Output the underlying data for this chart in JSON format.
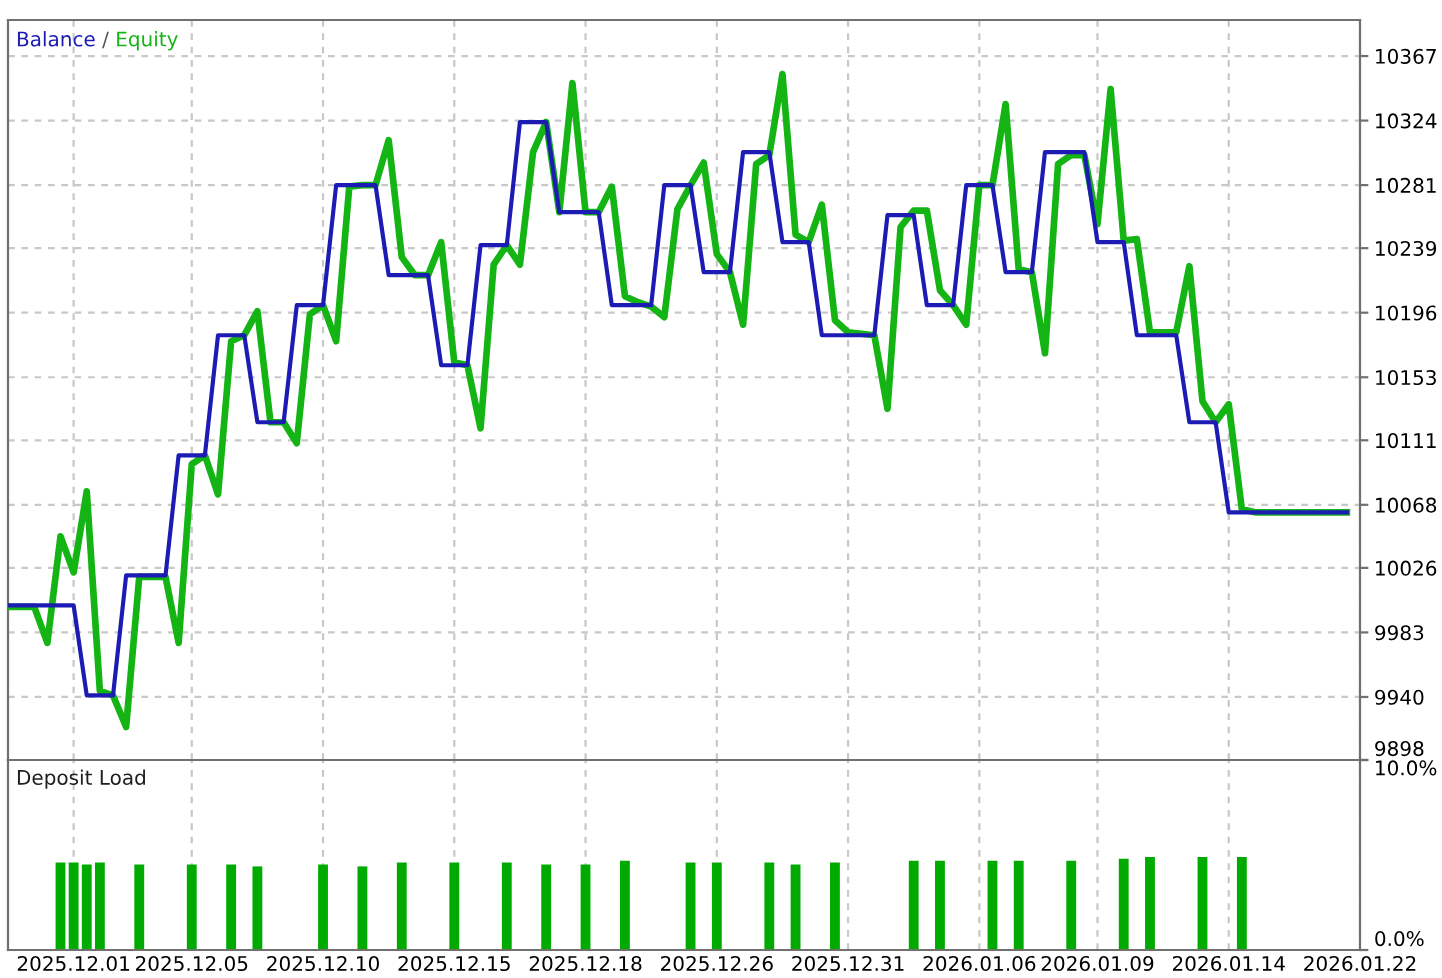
{
  "chart_data": [
    {
      "type": "line",
      "annotations": [
        "/"
      ],
      "grid": true,
      "tick_labels": "y",
      "marker": "none",
      "line_style": "solid",
      "categories": [
        null,
        null,
        null,
        null,
        null,
        "2025.12.01",
        null,
        null,
        null,
        null,
        null,
        null,
        null,
        null,
        "2025.12.05",
        null,
        null,
        null,
        null,
        null,
        null,
        null,
        null,
        null,
        "2025.12.10",
        null,
        null,
        null,
        null,
        null,
        null,
        null,
        null,
        null,
        "2025.12.15",
        null,
        null,
        null,
        null,
        null,
        null,
        null,
        null,
        null,
        "2025.12.18",
        null,
        null,
        null,
        null,
        null,
        null,
        null,
        null,
        null,
        "2025.12.26",
        null,
        null,
        null,
        null,
        null,
        null,
        null,
        null,
        null,
        "2025.12.31",
        null,
        null,
        null,
        null,
        null,
        null,
        null,
        null,
        null,
        "2026.01.06",
        null,
        null,
        null,
        null,
        null,
        null,
        null,
        null,
        "2026.01.09",
        null,
        null,
        null,
        null,
        null,
        null,
        null,
        null,
        null,
        "2026.01.14",
        null,
        null,
        null,
        null,
        null,
        null,
        null,
        null,
        null,
        "2026.01.22"
      ],
      "ylim": [
        9898,
        10391
      ],
      "yticks": [
        9898,
        9940,
        9983,
        10026,
        10068,
        10111,
        10153,
        10196,
        10239,
        10281,
        10324,
        10367
      ],
      "series": [
        {
          "name": "Balance",
          "color": "#1c1cb4",
          "values": [
            10001,
            10001,
            10001,
            10001,
            10001,
            10001,
            9941,
            9941,
            9941,
            10021,
            10021,
            10021,
            10021,
            10101,
            10101,
            10101,
            10181,
            10181,
            10181,
            10123,
            10123,
            10123,
            10201,
            10201,
            10201,
            10281,
            10281,
            10281,
            10281,
            10221,
            10221,
            10221,
            10221,
            10161,
            10161,
            10161,
            10241,
            10241,
            10241,
            10323,
            10323,
            10323,
            10263,
            10263,
            10263,
            10263,
            10201,
            10201,
            10201,
            10201,
            10281,
            10281,
            10281,
            10223,
            10223,
            10223,
            10303,
            10303,
            10303,
            10243,
            10243,
            10243,
            10181,
            10181,
            10181,
            10181,
            10181,
            10261,
            10261,
            10261,
            10201,
            10201,
            10201,
            10281,
            10281,
            10281,
            10223,
            10223,
            10223,
            10303,
            10303,
            10303,
            10303,
            10243,
            10243,
            10243,
            10181,
            10181,
            10181,
            10181,
            10123,
            10123,
            10123,
            10063,
            10063,
            10063,
            10063,
            10063,
            10063,
            10063,
            10063,
            10063,
            10063,
            null
          ]
        },
        {
          "name": "Equity",
          "color": "#14b414",
          "values": [
            10000,
            10000,
            10000,
            9976,
            10047,
            10023,
            10077,
            9944,
            9941,
            9920,
            10020,
            10020,
            10020,
            9976,
            10095,
            10101,
            10075,
            10177,
            10181,
            10197,
            10123,
            10123,
            10109,
            10195,
            10201,
            10177,
            10280,
            10281,
            10281,
            10311,
            10233,
            10221,
            10221,
            10243,
            10163,
            10161,
            10119,
            10228,
            10241,
            10228,
            10303,
            10323,
            10263,
            10349,
            10263,
            10263,
            10280,
            10207,
            10203,
            10200,
            10193,
            10265,
            10281,
            10296,
            10235,
            10223,
            10188,
            10295,
            10301,
            10355,
            10248,
            10243,
            10268,
            10191,
            10183,
            10182,
            10181,
            10132,
            10253,
            10264,
            10264,
            10211,
            10201,
            10188,
            10281,
            10281,
            10335,
            10225,
            10223,
            10169,
            10295,
            10301,
            10301,
            10255,
            10345,
            10244,
            10245,
            10183,
            10183,
            10183,
            10227,
            10137,
            10123,
            10135,
            10065,
            10063,
            10063,
            10063,
            10063,
            10063,
            10063,
            10063,
            10063,
            null
          ]
        }
      ]
    },
    {
      "type": "bar",
      "title": "Deposit Load",
      "grid": "x",
      "categories": [
        null,
        null,
        null,
        null,
        null,
        "2025.12.01",
        null,
        null,
        null,
        null,
        null,
        null,
        null,
        null,
        "2025.12.05",
        null,
        null,
        null,
        null,
        null,
        null,
        null,
        null,
        null,
        "2025.12.10",
        null,
        null,
        null,
        null,
        null,
        null,
        null,
        null,
        null,
        "2025.12.15",
        null,
        null,
        null,
        null,
        null,
        null,
        null,
        null,
        null,
        "2025.12.18",
        null,
        null,
        null,
        null,
        null,
        null,
        null,
        null,
        null,
        "2025.12.26",
        null,
        null,
        null,
        null,
        null,
        null,
        null,
        null,
        null,
        "2025.12.31",
        null,
        null,
        null,
        null,
        null,
        null,
        null,
        null,
        null,
        "2026.01.06",
        null,
        null,
        null,
        null,
        null,
        null,
        null,
        null,
        "2026.01.09",
        null,
        null,
        null,
        null,
        null,
        null,
        null,
        null,
        null,
        "2026.01.14",
        null,
        null,
        null,
        null,
        null,
        null,
        null,
        null,
        null,
        "2026.01.22"
      ],
      "ylim": [
        0,
        10
      ],
      "yticks": [
        {
          "value": 0,
          "label": "0.0%"
        },
        {
          "value": 10,
          "label": "10.0%"
        }
      ],
      "series": [
        {
          "color": "#00aa00",
          "values": [
            null,
            null,
            null,
            null,
            4.6,
            4.6,
            4.5,
            4.6,
            null,
            null,
            4.5,
            null,
            null,
            null,
            4.5,
            null,
            null,
            4.5,
            null,
            4.4,
            null,
            null,
            null,
            null,
            4.5,
            null,
            null,
            4.4,
            null,
            null,
            4.6,
            null,
            null,
            null,
            4.6,
            null,
            null,
            null,
            4.6,
            null,
            null,
            4.5,
            null,
            null,
            4.5,
            null,
            null,
            4.7,
            null,
            null,
            null,
            null,
            4.6,
            null,
            4.6,
            null,
            null,
            null,
            4.6,
            null,
            4.5,
            null,
            null,
            4.6,
            null,
            null,
            null,
            null,
            null,
            4.7,
            null,
            4.7,
            null,
            null,
            null,
            4.7,
            null,
            4.7,
            null,
            null,
            null,
            4.7,
            null,
            null,
            null,
            4.8,
            null,
            4.9,
            null,
            null,
            null,
            4.9,
            null,
            null,
            4.9,
            null,
            null,
            null,
            null,
            null,
            null,
            null,
            null,
            null
          ]
        }
      ]
    }
  ]
}
